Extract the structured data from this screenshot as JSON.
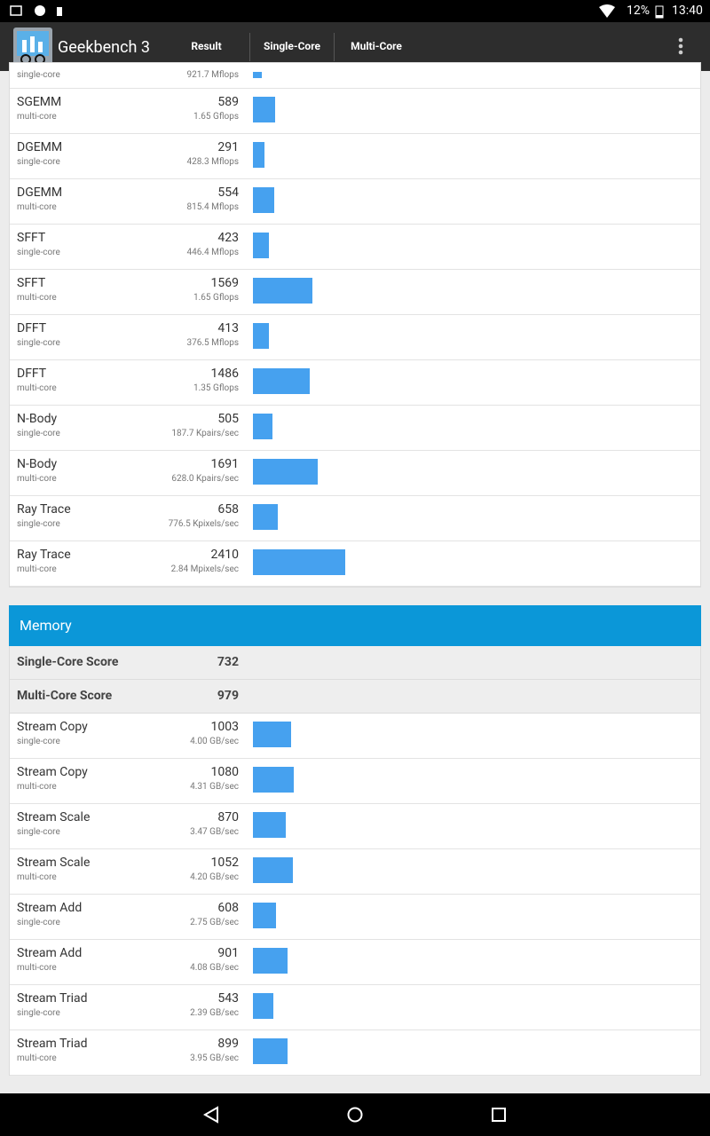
{
  "status_bar": {
    "battery": "12%",
    "time": "13:40"
  },
  "app_bar": {
    "title": "Geekbench 3",
    "tabs": [
      "Result",
      "Single-Core",
      "Multi-Core"
    ]
  },
  "partial_row": {
    "type": "single-core",
    "detail": "921.7 Mflops"
  },
  "sections": [
    {
      "rows": [
        {
          "name": "SGEMM",
          "type": "multi-core",
          "score": 589,
          "detail": "1.65 Gflops"
        },
        {
          "name": "DGEMM",
          "type": "single-core",
          "score": 291,
          "detail": "428.3 Mflops"
        },
        {
          "name": "DGEMM",
          "type": "multi-core",
          "score": 554,
          "detail": "815.4 Mflops"
        },
        {
          "name": "SFFT",
          "type": "single-core",
          "score": 423,
          "detail": "446.4 Mflops"
        },
        {
          "name": "SFFT",
          "type": "multi-core",
          "score": 1569,
          "detail": "1.65 Gflops"
        },
        {
          "name": "DFFT",
          "type": "single-core",
          "score": 413,
          "detail": "376.5 Mflops"
        },
        {
          "name": "DFFT",
          "type": "multi-core",
          "score": 1486,
          "detail": "1.35 Gflops"
        },
        {
          "name": "N-Body",
          "type": "single-core",
          "score": 505,
          "detail": "187.7 Kpairs/sec"
        },
        {
          "name": "N-Body",
          "type": "multi-core",
          "score": 1691,
          "detail": "628.0 Kpairs/sec"
        },
        {
          "name": "Ray Trace",
          "type": "single-core",
          "score": 658,
          "detail": "776.5 Kpixels/sec"
        },
        {
          "name": "Ray Trace",
          "type": "multi-core",
          "score": 2410,
          "detail": "2.84 Mpixels/sec"
        }
      ]
    },
    {
      "title": "Memory",
      "summary": [
        {
          "label": "Single-Core Score",
          "score": 732
        },
        {
          "label": "Multi-Core Score",
          "score": 979
        }
      ],
      "rows": [
        {
          "name": "Stream Copy",
          "type": "single-core",
          "score": 1003,
          "detail": "4.00 GB/sec"
        },
        {
          "name": "Stream Copy",
          "type": "multi-core",
          "score": 1080,
          "detail": "4.31 GB/sec"
        },
        {
          "name": "Stream Scale",
          "type": "single-core",
          "score": 870,
          "detail": "3.47 GB/sec"
        },
        {
          "name": "Stream Scale",
          "type": "multi-core",
          "score": 1052,
          "detail": "4.20 GB/sec"
        },
        {
          "name": "Stream Add",
          "type": "single-core",
          "score": 608,
          "detail": "2.75 GB/sec"
        },
        {
          "name": "Stream Add",
          "type": "multi-core",
          "score": 901,
          "detail": "4.08 GB/sec"
        },
        {
          "name": "Stream Triad",
          "type": "single-core",
          "score": 543,
          "detail": "2.39 GB/sec"
        },
        {
          "name": "Stream Triad",
          "type": "multi-core",
          "score": 899,
          "detail": "3.95 GB/sec"
        }
      ]
    }
  ]
}
